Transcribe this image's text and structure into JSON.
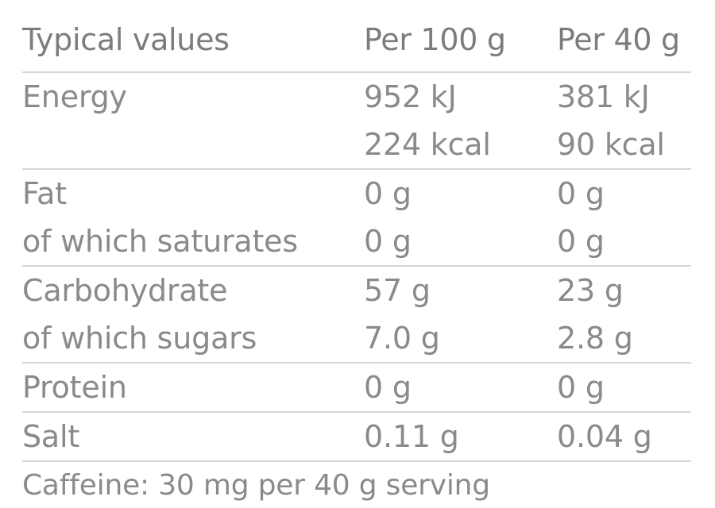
{
  "header": {
    "col1": "Typical values",
    "col2": "Per 100 g",
    "col3": "Per 40 g"
  },
  "rows": [
    {
      "label_lines": [
        "Energy",
        ""
      ],
      "per100_lines": [
        "952 kJ",
        "224 kcal"
      ],
      "per40_lines": [
        "381 kJ",
        "90 kcal"
      ]
    },
    {
      "label_lines": [
        "Fat",
        "of which saturates"
      ],
      "per100_lines": [
        "0 g",
        "0 g"
      ],
      "per40_lines": [
        "0 g",
        "0 g"
      ]
    },
    {
      "label_lines": [
        "Carbohydrate",
        "of which sugars"
      ],
      "per100_lines": [
        "57 g",
        "7.0 g"
      ],
      "per40_lines": [
        "23 g",
        "2.8 g"
      ]
    },
    {
      "label_lines": [
        "Protein"
      ],
      "per100_lines": [
        "0 g"
      ],
      "per40_lines": [
        "0 g"
      ]
    },
    {
      "label_lines": [
        "Salt"
      ],
      "per100_lines": [
        "0.11 g"
      ],
      "per40_lines": [
        "0.04 g"
      ]
    }
  ],
  "footnote": "Caffeine: 30 mg per 40 g serving"
}
